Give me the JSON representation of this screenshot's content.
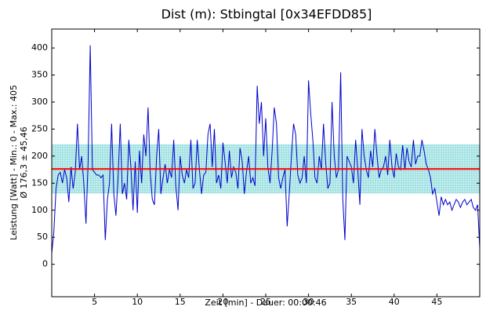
{
  "chart_data": {
    "type": "line",
    "title": "Dist (m): Stbingtal [0x34EFDD85]",
    "x_label": "Zeit [min] - Dauer: 00:00:46",
    "y_label": "Leistung [Watt] - Min.: 0 - Max.: 405",
    "y_label_2": "Ø 176,3 ± 45,46",
    "mean": 176.3,
    "sd": 45.46,
    "mean_color": "#ff0000",
    "band_color": "#a8e4e4",
    "xlim": [
      0,
      50
    ],
    "xticks": [
      5,
      10,
      15,
      20,
      25,
      30,
      35,
      40,
      45
    ],
    "ylim": [
      -60,
      435
    ],
    "yticks": [
      0,
      50,
      100,
      150,
      200,
      250,
      300,
      350,
      400
    ],
    "x": [
      0,
      0.25,
      0.5,
      0.75,
      1,
      1.25,
      1.5,
      1.75,
      2,
      2.25,
      2.5,
      2.75,
      3,
      3.25,
      3.5,
      3.75,
      4,
      4.25,
      4.5,
      4.75,
      5,
      5.25,
      5.5,
      5.75,
      6,
      6.25,
      6.5,
      6.75,
      7,
      7.25,
      7.5,
      7.75,
      8,
      8.25,
      8.5,
      8.75,
      9,
      9.25,
      9.5,
      9.75,
      10,
      10.25,
      10.5,
      10.75,
      11,
      11.25,
      11.5,
      11.75,
      12,
      12.25,
      12.5,
      12.75,
      13,
      13.25,
      13.5,
      13.75,
      14,
      14.25,
      14.5,
      14.75,
      15,
      15.25,
      15.5,
      15.75,
      16,
      16.25,
      16.5,
      16.75,
      17,
      17.25,
      17.5,
      17.75,
      18,
      18.25,
      18.5,
      18.75,
      19,
      19.25,
      19.5,
      19.75,
      20,
      20.25,
      20.5,
      20.75,
      21,
      21.25,
      21.5,
      21.75,
      22,
      22.25,
      22.5,
      22.75,
      23,
      23.25,
      23.5,
      23.75,
      24,
      24.25,
      24.5,
      24.75,
      25,
      25.25,
      25.5,
      25.75,
      26,
      26.25,
      26.5,
      26.75,
      27,
      27.25,
      27.5,
      27.75,
      28,
      28.25,
      28.5,
      28.75,
      29,
      29.25,
      29.5,
      29.75,
      30,
      30.25,
      30.5,
      30.75,
      31,
      31.25,
      31.5,
      31.75,
      32,
      32.25,
      32.5,
      32.75,
      33,
      33.25,
      33.5,
      33.75,
      34,
      34.25,
      34.5,
      34.75,
      35,
      35.25,
      35.5,
      35.75,
      36,
      36.25,
      36.5,
      36.75,
      37,
      37.25,
      37.5,
      37.75,
      38,
      38.25,
      38.5,
      38.75,
      39,
      39.25,
      39.5,
      39.75,
      40,
      40.25,
      40.5,
      40.75,
      41,
      41.25,
      41.5,
      41.75,
      42,
      42.25,
      42.5,
      42.75,
      43,
      43.25,
      43.5,
      43.75,
      44,
      44.25,
      44.5,
      44.75,
      45,
      45.25,
      45.5,
      45.75,
      46,
      46.25,
      46.5,
      46.75,
      47,
      47.25,
      47.5,
      47.75,
      48,
      48.25,
      48.5,
      48.75,
      49,
      49.25,
      49.5,
      49.75,
      50
    ],
    "series": [
      {
        "name": "Leistung",
        "color": "#0000cc",
        "values": [
          20,
          60,
          140,
          165,
          170,
          150,
          175,
          160,
          115,
          180,
          140,
          170,
          260,
          175,
          200,
          150,
          75,
          190,
          405,
          175,
          170,
          165,
          165,
          160,
          165,
          45,
          120,
          150,
          260,
          130,
          90,
          160,
          260,
          130,
          150,
          120,
          230,
          180,
          100,
          190,
          95,
          210,
          150,
          240,
          200,
          290,
          170,
          120,
          110,
          200,
          250,
          130,
          160,
          185,
          150,
          175,
          160,
          230,
          145,
          100,
          200,
          165,
          150,
          175,
          160,
          230,
          140,
          150,
          230,
          175,
          130,
          165,
          170,
          240,
          260,
          180,
          250,
          150,
          165,
          140,
          225,
          190,
          150,
          210,
          160,
          180,
          170,
          140,
          215,
          190,
          130,
          170,
          200,
          150,
          160,
          145,
          330,
          260,
          300,
          200,
          270,
          180,
          150,
          210,
          290,
          260,
          160,
          140,
          160,
          175,
          70,
          130,
          200,
          260,
          240,
          165,
          150,
          160,
          200,
          150,
          340,
          280,
          230,
          160,
          150,
          200,
          175,
          260,
          190,
          140,
          150,
          300,
          200,
          160,
          175,
          355,
          120,
          45,
          200,
          190,
          180,
          150,
          230,
          175,
          110,
          250,
          200,
          175,
          160,
          210,
          180,
          250,
          200,
          160,
          175,
          180,
          200,
          165,
          230,
          180,
          160,
          205,
          180,
          175,
          220,
          175,
          215,
          190,
          180,
          230,
          185,
          200,
          200,
          230,
          210,
          185,
          175,
          160,
          130,
          140,
          115,
          90,
          125,
          110,
          120,
          110,
          115,
          100,
          110,
          120,
          115,
          105,
          115,
          120,
          110,
          115,
          120,
          105,
          100,
          110,
          30
        ]
      }
    ]
  }
}
